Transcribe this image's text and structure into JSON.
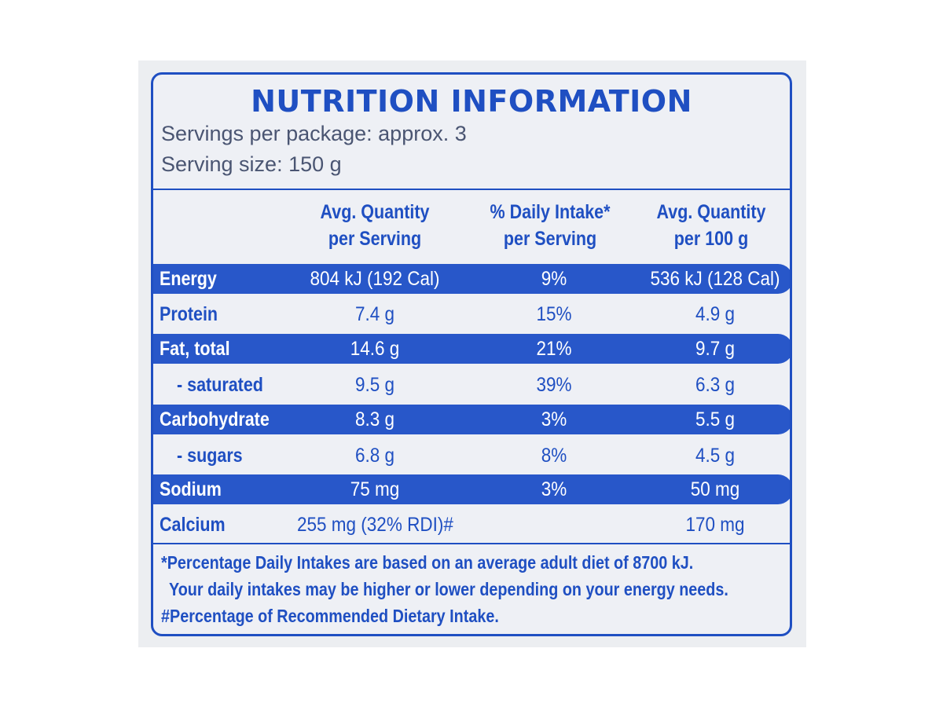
{
  "label": {
    "title": "NUTRITION INFORMATION",
    "servings_per_package": "Servings per package: approx. 3",
    "serving_size": "Serving size: 150 g"
  },
  "columns": {
    "col1": [
      "Avg. Quantity",
      "per Serving"
    ],
    "col2": [
      "% Daily Intake*",
      "per Serving"
    ],
    "col3": [
      "Avg. Quantity",
      "per 100 g"
    ]
  },
  "rows": [
    {
      "name": "Energy",
      "per_serving": "804 kJ (192 Cal)",
      "daily_intake": "9%",
      "per_100g": "536 kJ (128 Cal)"
    },
    {
      "name": "Protein",
      "per_serving": "7.4 g",
      "daily_intake": "15%",
      "per_100g": "4.9 g"
    },
    {
      "name": "Fat, total",
      "per_serving": "14.6 g",
      "daily_intake": "21%",
      "per_100g": "9.7 g"
    },
    {
      "name": " - saturated",
      "per_serving": "9.5 g",
      "daily_intake": "39%",
      "per_100g": "6.3 g"
    },
    {
      "name": "Carbohydrate",
      "per_serving": "8.3 g",
      "daily_intake": "3%",
      "per_100g": "5.5 g"
    },
    {
      "name": " - sugars",
      "per_serving": "6.8 g",
      "daily_intake": "8%",
      "per_100g": "4.5 g"
    },
    {
      "name": "Sodium",
      "per_serving": "75 mg",
      "daily_intake": "3%",
      "per_100g": "50 mg"
    },
    {
      "name": "Calcium",
      "per_serving": "255 mg (32% RDI)#",
      "daily_intake": "",
      "per_100g": "170 mg"
    }
  ],
  "footnotes": {
    "line1": "*Percentage Daily Intakes are based on an average adult diet of 8700 kJ.",
    "line2": "Your daily intakes may be higher or lower depending on your energy needs.",
    "line3": "#Percentage of Recommended Dietary Intake."
  },
  "colors": {
    "ink": "#1f4fc2",
    "band": "#2857c9",
    "background": "#eef0f5"
  }
}
